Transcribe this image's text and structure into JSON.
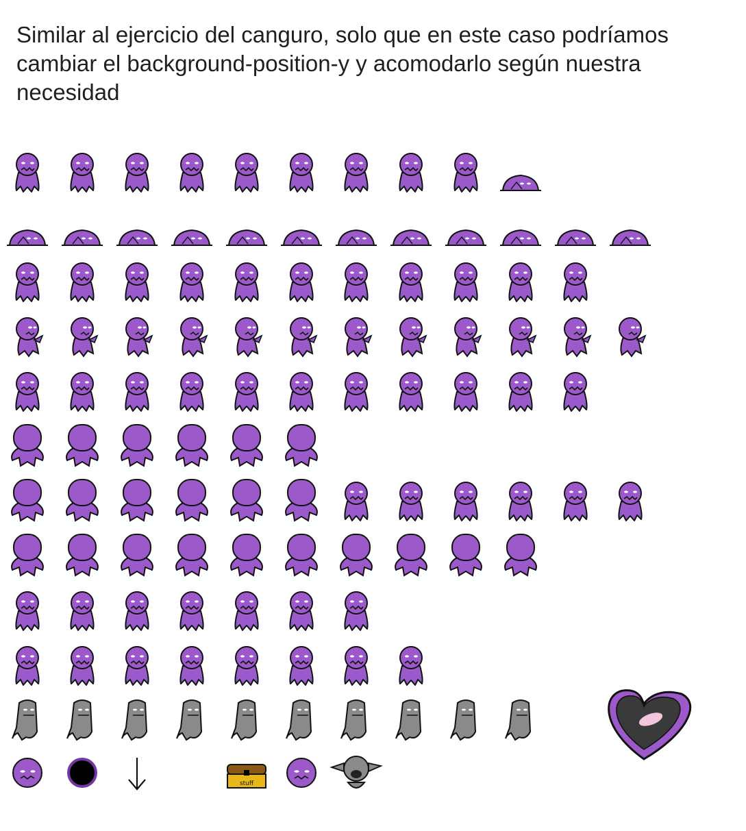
{
  "caption": "Similar al ejercicio del canguro, solo que en este caso podríamos cambiar el background-position-y y acomodarlo según nuestra necesidad",
  "colors": {
    "purple": "#9b59c9",
    "purple_dark": "#6f3aa0",
    "gray": "#8a8a8a",
    "outline": "#111111",
    "eye": "#ffffff",
    "heart": "#3a3a3a",
    "heart_rim": "#9b59c9",
    "heart_shine": "#f4c6dd",
    "chest_wood": "#8b5a14",
    "chest_gold": "#e8b81a"
  },
  "sprite_rows": [
    {
      "kind": "front",
      "count": 9,
      "extra": "lying"
    },
    {
      "kind": "lying",
      "count": 12
    },
    {
      "kind": "front",
      "count": 11
    },
    {
      "kind": "side",
      "count": 12
    },
    {
      "kind": "front",
      "count": 11
    },
    {
      "kind": "back",
      "count": 6
    },
    {
      "kind": "back",
      "count": 6,
      "extra_front": 6
    },
    {
      "kind": "back",
      "count": 10
    },
    {
      "kind": "front",
      "count": 7
    },
    {
      "kind": "front",
      "count": 8
    },
    {
      "kind": "gray",
      "count": 10,
      "extra": "heart"
    },
    {
      "kind": "misc",
      "items": [
        "purple-head",
        "black-orb",
        "down-arrow",
        "empty",
        "treasure-chest",
        "purple-head",
        "gray-goblin"
      ]
    }
  ],
  "chest_label": "stuff"
}
